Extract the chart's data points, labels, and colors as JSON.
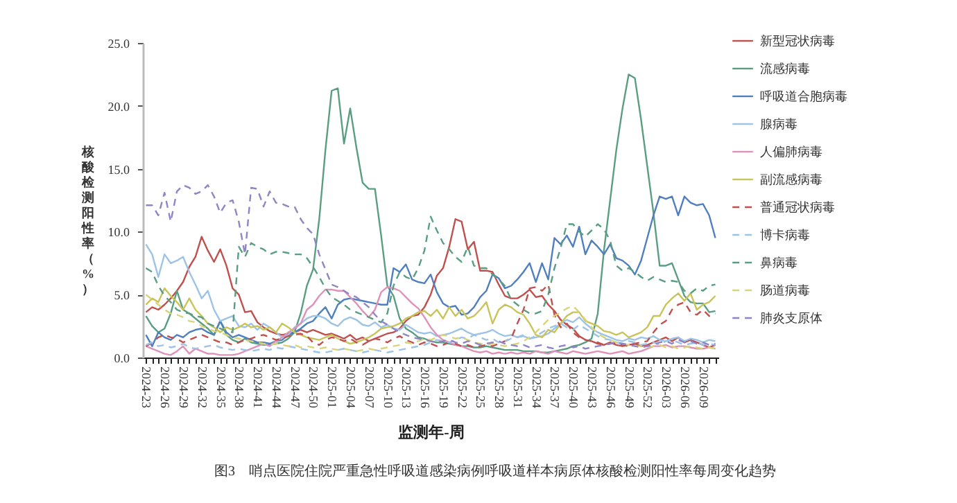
{
  "chart_data": {
    "type": "line",
    "xlabel": "监测年-周",
    "ylabel": "核酸检测阳性率（%）",
    "annotations": [
      "图3　哨点医院住院严重急性呼吸道感染病例呼吸道样本病原体核酸检测阳性率每周变化趋势"
    ],
    "categories": [
      "2024-23",
      null,
      null,
      "2024-26",
      null,
      null,
      "2024-29",
      null,
      null,
      "2024-32",
      null,
      null,
      "2024-35",
      null,
      null,
      "2024-38",
      null,
      null,
      "2024-41",
      null,
      null,
      "2024-44",
      null,
      null,
      "2024-47",
      null,
      null,
      "2024-50",
      null,
      null,
      "2025-01",
      null,
      null,
      "2025-04",
      null,
      null,
      "2025-07",
      null,
      null,
      "2025-10",
      null,
      null,
      "2025-13",
      null,
      null,
      "2025-16",
      null,
      null,
      "2025-19",
      null,
      null,
      "2025-22",
      null,
      null,
      "2025-25",
      null,
      null,
      "2025-28",
      null,
      null,
      "2025-31",
      null,
      null,
      "2025-34",
      null,
      null,
      "2025-37",
      null,
      null,
      "2025-40",
      null,
      null,
      "2025-43",
      null,
      null,
      "2025-46",
      null,
      null,
      "2025-49",
      null,
      null,
      "2025-52",
      null,
      null,
      "2026-03",
      null,
      null,
      "2026-06",
      null,
      null,
      "2026-09",
      null,
      null
    ],
    "ylim": [
      0,
      25
    ],
    "yticks": [
      {
        "value": 0,
        "label": "0.0"
      },
      {
        "value": 5,
        "label": "5.0"
      },
      {
        "value": 10,
        "label": "10.0"
      },
      {
        "value": 15,
        "label": "15.0"
      },
      {
        "value": 20,
        "label": "20.0"
      },
      {
        "value": 25,
        "label": "25.0"
      }
    ],
    "legend": "right",
    "series": [
      {
        "name": "新型冠状病毒",
        "color": "#c0504d",
        "line_style": "solid",
        "values": [
          3.6,
          4.0,
          3.8,
          4.2,
          4.7,
          5.3,
          6.0,
          7.2,
          8.0,
          9.6,
          8.5,
          7.6,
          8.6,
          7.3,
          5.5,
          5.0,
          3.6,
          3.7,
          2.8,
          2.4,
          2.1,
          1.9,
          1.8,
          1.9,
          2.0,
          2.2,
          2.0,
          2.2,
          2.0,
          1.8,
          1.9,
          1.7,
          1.5,
          1.8,
          1.4,
          1.6,
          1.3,
          1.5,
          1.7,
          1.9,
          2.0,
          2.3,
          2.9,
          3.3,
          3.4,
          4.0,
          5.0,
          6.5,
          7.1,
          8.8,
          11.0,
          10.8,
          8.6,
          9.2,
          6.9,
          6.9,
          6.8,
          5.8,
          4.9,
          4.7,
          4.7,
          5.0,
          5.4,
          4.8,
          4.9,
          4.2,
          3.7,
          3.0,
          2.6,
          2.3,
          1.7,
          1.4,
          1.3,
          1.1,
          1.0,
          1.2,
          1.0,
          0.9,
          1.0,
          1.1,
          0.9,
          1.0,
          1.2,
          1.4,
          1.6,
          1.3,
          1.6,
          1.2,
          1.4,
          1.2,
          1.0,
          0.8,
          1.0
        ]
      },
      {
        "name": "流感病毒",
        "color": "#5a9e82",
        "line_style": "solid",
        "values": [
          3.3,
          2.5,
          2.0,
          2.3,
          3.5,
          5.3,
          3.8,
          3.5,
          3.1,
          2.7,
          2.3,
          1.8,
          2.9,
          1.8,
          1.4,
          1.2,
          1.5,
          1.2,
          1.1,
          1.0,
          1.0,
          1.1,
          1.2,
          1.5,
          2.0,
          3.5,
          5.7,
          7.0,
          11.0,
          16.5,
          21.2,
          21.4,
          17.0,
          19.8,
          16.7,
          13.9,
          13.4,
          13.4,
          9.7,
          5.7,
          4.9,
          3.1,
          2.3,
          2.0,
          1.6,
          1.5,
          1.3,
          1.2,
          1.2,
          1.1,
          1.0,
          0.9,
          0.9,
          0.8,
          0.8,
          0.9,
          0.8,
          0.7,
          0.6,
          0.6,
          0.6,
          0.5,
          0.5,
          0.5,
          0.4,
          0.4,
          0.5,
          0.6,
          0.7,
          0.9,
          1.0,
          1.2,
          1.5,
          3.5,
          8.5,
          12.5,
          16.5,
          19.8,
          22.5,
          22.2,
          18.9,
          15.2,
          11.5,
          7.3,
          7.3,
          7.5,
          6.2,
          4.9,
          4.4,
          4.3,
          4.3,
          3.6,
          3.7
        ]
      },
      {
        "name": "呼吸道合胞病毒",
        "color": "#4f7fbf",
        "line_style": "solid",
        "values": [
          1.8,
          0.9,
          2.0,
          1.6,
          1.4,
          1.8,
          1.6,
          2.0,
          2.2,
          2.3,
          2.0,
          1.8,
          2.9,
          2.0,
          1.6,
          1.8,
          1.6,
          1.4,
          1.2,
          1.2,
          1.1,
          1.3,
          1.4,
          1.8,
          2.0,
          2.3,
          2.7,
          2.9,
          3.5,
          4.0,
          3.1,
          4.2,
          4.6,
          4.7,
          4.6,
          4.5,
          4.4,
          4.3,
          4.2,
          4.2,
          7.1,
          6.8,
          7.4,
          6.2,
          6.0,
          5.9,
          6.6,
          5.2,
          4.3,
          4.0,
          4.1,
          3.4,
          3.5,
          4.0,
          4.8,
          5.3,
          6.6,
          6.3,
          5.5,
          5.7,
          6.2,
          6.8,
          7.5,
          6.0,
          7.5,
          6.2,
          9.5,
          9.0,
          9.7,
          8.8,
          10.4,
          8.2,
          9.3,
          8.8,
          8.2,
          9.0,
          7.9,
          7.7,
          7.3,
          6.6,
          7.7,
          9.5,
          11.3,
          12.8,
          12.6,
          12.8,
          11.3,
          12.8,
          12.3,
          12.1,
          12.2,
          11.3,
          9.5
        ]
      },
      {
        "name": "腺病毒",
        "color": "#9dc3e6",
        "line_style": "solid",
        "values": [
          9.0,
          8.2,
          6.4,
          8.2,
          7.5,
          7.7,
          8.0,
          6.8,
          5.8,
          4.7,
          5.3,
          3.8,
          2.9,
          3.1,
          3.3,
          2.5,
          2.4,
          2.7,
          2.2,
          2.7,
          2.4,
          2.0,
          1.6,
          1.8,
          2.4,
          2.7,
          3.1,
          3.3,
          3.3,
          3.1,
          2.7,
          2.5,
          3.0,
          3.2,
          3.0,
          2.6,
          2.5,
          2.8,
          2.4,
          2.6,
          2.3,
          2.2,
          2.6,
          2.3,
          2.0,
          1.9,
          2.0,
          1.7,
          1.8,
          1.9,
          2.1,
          2.3,
          2.0,
          1.8,
          1.9,
          2.0,
          2.2,
          1.9,
          1.7,
          1.8,
          1.6,
          1.7,
          1.5,
          1.6,
          1.7,
          1.9,
          2.3,
          2.7,
          3.0,
          2.8,
          3.2,
          2.7,
          2.3,
          2.0,
          1.8,
          1.6,
          1.4,
          1.3,
          1.5,
          1.4,
          1.6,
          1.5,
          1.7,
          1.4,
          1.3,
          1.5,
          1.6,
          1.3,
          1.5,
          1.4,
          1.2,
          1.4,
          1.3
        ]
      },
      {
        "name": "人偏肺病毒",
        "color": "#e091b8",
        "line_style": "solid",
        "values": [
          0.9,
          0.7,
          0.5,
          0.3,
          0.2,
          0.5,
          0.9,
          0.3,
          0.7,
          0.5,
          0.3,
          0.3,
          0.2,
          0.2,
          0.2,
          0.3,
          0.5,
          0.7,
          0.9,
          1.1,
          0.9,
          1.3,
          1.6,
          2.0,
          2.3,
          2.7,
          3.8,
          4.2,
          4.9,
          5.4,
          5.4,
          5.3,
          5.3,
          4.8,
          4.3,
          3.7,
          3.2,
          3.8,
          5.2,
          5.6,
          5.5,
          5.3,
          4.8,
          4.3,
          3.9,
          3.2,
          2.4,
          1.8,
          1.4,
          1.2,
          1.0,
          0.9,
          0.7,
          0.5,
          0.4,
          0.5,
          0.3,
          0.4,
          0.3,
          0.4,
          0.3,
          0.4,
          0.3,
          0.5,
          0.4,
          0.3,
          0.5,
          0.4,
          0.3,
          0.5,
          0.4,
          0.3,
          0.4,
          0.5,
          0.4,
          0.3,
          0.4,
          0.5,
          0.3,
          0.4,
          0.5,
          0.7,
          0.9,
          0.9,
          1.0,
          0.8,
          0.9,
          0.9,
          0.8,
          0.7,
          0.7,
          0.8,
          0.7
        ]
      },
      {
        "name": "副流感病毒",
        "color": "#c8c45a",
        "line_style": "solid",
        "values": [
          4.2,
          4.7,
          4.4,
          5.5,
          4.9,
          4.4,
          3.8,
          4.7,
          3.8,
          3.3,
          2.7,
          2.4,
          2.0,
          2.4,
          2.2,
          2.4,
          2.7,
          2.4,
          2.5,
          2.2,
          2.4,
          2.0,
          2.7,
          2.4,
          2.0,
          1.8,
          1.6,
          1.5,
          1.4,
          1.6,
          1.8,
          1.5,
          1.3,
          1.1,
          1.2,
          1.4,
          1.6,
          1.9,
          2.3,
          2.4,
          2.5,
          2.7,
          3.1,
          3.3,
          3.6,
          3.7,
          3.3,
          3.8,
          3.1,
          4.0,
          3.3,
          3.8,
          3.1,
          3.3,
          3.8,
          4.4,
          2.7,
          3.8,
          4.2,
          4.0,
          3.6,
          3.4,
          2.7,
          1.8,
          1.6,
          2.2,
          2.0,
          2.7,
          3.3,
          3.6,
          3.6,
          2.9,
          2.7,
          2.5,
          2.1,
          2.0,
          1.8,
          2.0,
          1.6,
          1.8,
          2.0,
          2.4,
          3.3,
          3.3,
          4.2,
          4.7,
          5.1,
          4.5,
          5.1,
          3.8,
          4.2,
          4.4,
          4.9
        ]
      },
      {
        "name": "普通冠状病毒",
        "color": "#c0504d",
        "line_style": "dashed",
        "values": [
          0.9,
          1.2,
          1.6,
          1.8,
          1.6,
          1.5,
          1.2,
          1.4,
          1.6,
          1.8,
          1.6,
          1.4,
          1.2,
          1.2,
          1.0,
          1.2,
          1.4,
          1.5,
          1.7,
          1.8,
          1.6,
          1.4,
          1.5,
          1.7,
          1.8,
          1.9,
          1.7,
          1.2,
          1.0,
          1.4,
          1.6,
          1.5,
          1.3,
          1.5,
          1.2,
          1.0,
          1.3,
          1.5,
          1.4,
          1.2,
          1.5,
          1.7,
          1.4,
          1.2,
          1.0,
          1.2,
          1.1,
          0.9,
          1.0,
          1.2,
          1.1,
          0.9,
          1.0,
          0.8,
          0.9,
          1.0,
          0.9,
          1.1,
          1.3,
          1.5,
          2.7,
          3.8,
          5.5,
          5.6,
          5.3,
          5.8,
          3.4,
          2.4,
          2.7,
          2.0,
          1.6,
          1.4,
          1.3,
          1.2,
          1.0,
          1.1,
          1.2,
          1.0,
          0.9,
          1.1,
          1.2,
          1.3,
          2.0,
          2.6,
          2.9,
          3.8,
          4.2,
          4.4,
          3.6,
          3.4,
          3.8,
          3.3,
          3.5
        ]
      },
      {
        "name": "博卡病毒",
        "color": "#9dc3e6",
        "line_style": "dashed",
        "values": [
          1.0,
          1.2,
          0.9,
          1.0,
          0.8,
          0.9,
          1.1,
          0.8,
          0.7,
          0.8,
          0.9,
          1.0,
          0.8,
          0.7,
          0.6,
          0.7,
          0.6,
          0.5,
          0.6,
          0.7,
          0.6,
          0.8,
          0.7,
          0.9,
          0.8,
          0.7,
          0.6,
          0.5,
          0.4,
          0.4,
          0.5,
          0.6,
          0.7,
          0.6,
          0.5,
          0.4,
          0.5,
          0.6,
          0.5,
          0.4,
          0.5,
          0.6,
          0.7,
          0.8,
          0.9,
          1.0,
          1.2,
          1.4,
          1.3,
          1.2,
          1.4,
          1.6,
          1.5,
          1.8,
          1.6,
          1.4,
          1.5,
          1.2,
          1.3,
          1.5,
          1.6,
          1.8,
          1.5,
          1.7,
          2.0,
          2.3,
          2.5,
          2.7,
          2.4,
          2.2,
          2.6,
          2.3,
          2.0,
          1.7,
          1.5,
          1.4,
          1.2,
          1.1,
          1.3,
          1.2,
          1.0,
          1.1,
          1.2,
          1.0,
          1.3,
          1.4,
          1.2,
          1.0,
          1.1,
          1.2,
          1.0,
          1.1,
          1.0
        ]
      },
      {
        "name": "鼻病毒",
        "color": "#5a9e82",
        "line_style": "dashed",
        "values": [
          7.1,
          6.8,
          5.7,
          4.9,
          4.4,
          3.8,
          3.6,
          3.5,
          3.3,
          3.2,
          2.7,
          2.5,
          2.3,
          2.1,
          2.0,
          8.8,
          8.0,
          9.1,
          8.8,
          8.6,
          8.2,
          8.4,
          8.4,
          8.3,
          8.2,
          8.2,
          7.9,
          7.2,
          6.4,
          5.5,
          4.8,
          4.5,
          4.2,
          3.8,
          3.6,
          3.4,
          3.2,
          3.0,
          2.8,
          3.5,
          5.7,
          6.8,
          6.4,
          6.2,
          7.1,
          8.5,
          11.2,
          10.1,
          9.1,
          8.6,
          8.0,
          7.6,
          8.8,
          7.3,
          7.1,
          7.1,
          6.6,
          6.2,
          5.7,
          4.6,
          4.2,
          3.8,
          3.5,
          3.5,
          3.7,
          5.0,
          7.1,
          8.7,
          10.6,
          10.6,
          10.0,
          9.6,
          10.1,
          10.6,
          10.2,
          9.3,
          7.3,
          6.9,
          7.1,
          6.8,
          6.4,
          6.1,
          6.4,
          6.2,
          6.0,
          6.1,
          6.0,
          5.3,
          5.1,
          5.5,
          5.3,
          5.7,
          5.8
        ]
      },
      {
        "name": "肠道病毒",
        "color": "#d8d47a",
        "line_style": "dashed",
        "values": [
          5.0,
          4.6,
          4.2,
          3.8,
          3.5,
          3.4,
          3.2,
          2.9,
          2.8,
          2.5,
          2.3,
          2.1,
          2.0,
          1.8,
          1.6,
          1.5,
          1.4,
          1.3,
          1.2,
          1.1,
          1.0,
          1.1,
          1.0,
          0.9,
          1.0,
          0.8,
          0.9,
          0.8,
          0.7,
          0.8,
          0.7,
          0.6,
          0.7,
          0.6,
          0.5,
          0.6,
          0.7,
          0.6,
          0.7,
          0.8,
          0.9,
          1.0,
          1.2,
          1.1,
          1.3,
          1.5,
          1.4,
          1.6,
          1.8,
          1.7,
          1.5,
          1.6,
          1.4,
          1.2,
          1.1,
          1.0,
          1.1,
          1.0,
          0.9,
          1.0,
          1.1,
          1.3,
          1.6,
          2.0,
          2.5,
          3.0,
          3.3,
          3.6,
          3.9,
          4.1,
          3.6,
          3.0,
          2.4,
          1.9,
          1.6,
          1.4,
          1.2,
          1.1,
          1.0,
          0.9,
          0.9,
          0.8,
          0.9,
          1.0,
          0.8,
          0.9,
          0.7,
          0.8,
          0.9,
          0.8,
          0.7,
          0.8,
          0.7
        ]
      },
      {
        "name": "肺炎支原体",
        "color": "#8f84c8",
        "line_style": "dashed",
        "values": [
          12.1,
          12.1,
          11.3,
          13.1,
          10.8,
          13.2,
          13.7,
          13.5,
          13.0,
          13.2,
          13.7,
          12.8,
          11.5,
          12.3,
          12.5,
          10.8,
          8.2,
          13.5,
          13.4,
          12.0,
          13.2,
          12.3,
          12.2,
          12.0,
          12.0,
          11.0,
          10.3,
          9.8,
          8.2,
          7.0,
          5.8,
          5.6,
          5.3,
          5.0,
          4.8,
          4.4,
          4.0,
          3.4,
          2.9,
          2.6,
          2.3,
          2.0,
          1.8,
          1.6,
          1.5,
          1.4,
          1.3,
          1.2,
          1.3,
          1.4,
          1.2,
          1.1,
          1.3,
          1.2,
          1.0,
          1.1,
          1.2,
          1.3,
          1.1,
          1.0,
          0.9,
          1.0,
          0.8,
          0.9,
          1.0,
          0.8,
          0.7,
          0.9,
          1.0,
          0.8,
          0.9,
          0.7,
          0.8,
          0.9,
          1.0,
          1.1,
          1.2,
          1.1,
          1.0,
          0.9,
          0.8,
          0.9,
          1.0,
          1.2,
          1.3,
          1.1,
          1.4,
          1.2,
          1.3,
          1.1,
          1.2,
          1.0,
          1.1
        ]
      }
    ]
  }
}
